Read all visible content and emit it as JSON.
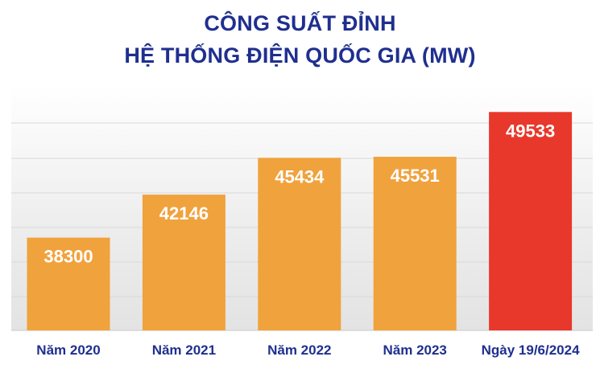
{
  "chart_data": {
    "type": "bar",
    "title_lines": [
      "CÔNG SUẤT ĐỈNH",
      "HỆ THỐNG ĐIỆN QUỐC GIA (MW)"
    ],
    "categories": [
      "Năm 2020",
      "Năm 2021",
      "Năm 2022",
      "Năm 2023",
      "Ngày 19/6/2024"
    ],
    "values": [
      38300,
      42146,
      45434,
      45531,
      49533
    ],
    "value_labels": [
      "38300",
      "42146",
      "45434",
      "45531",
      "49533"
    ],
    "ylim": [
      30000,
      52000
    ],
    "grid": true,
    "legend": "none",
    "colors": {
      "bar": "#f0a23d",
      "highlight_bar": "#e8382b",
      "highlight_index": 4,
      "title": "#1f2f8f",
      "value_label": "#ffffff",
      "category_label": "#1f2f8f",
      "grid": "#d9d9d9"
    }
  }
}
